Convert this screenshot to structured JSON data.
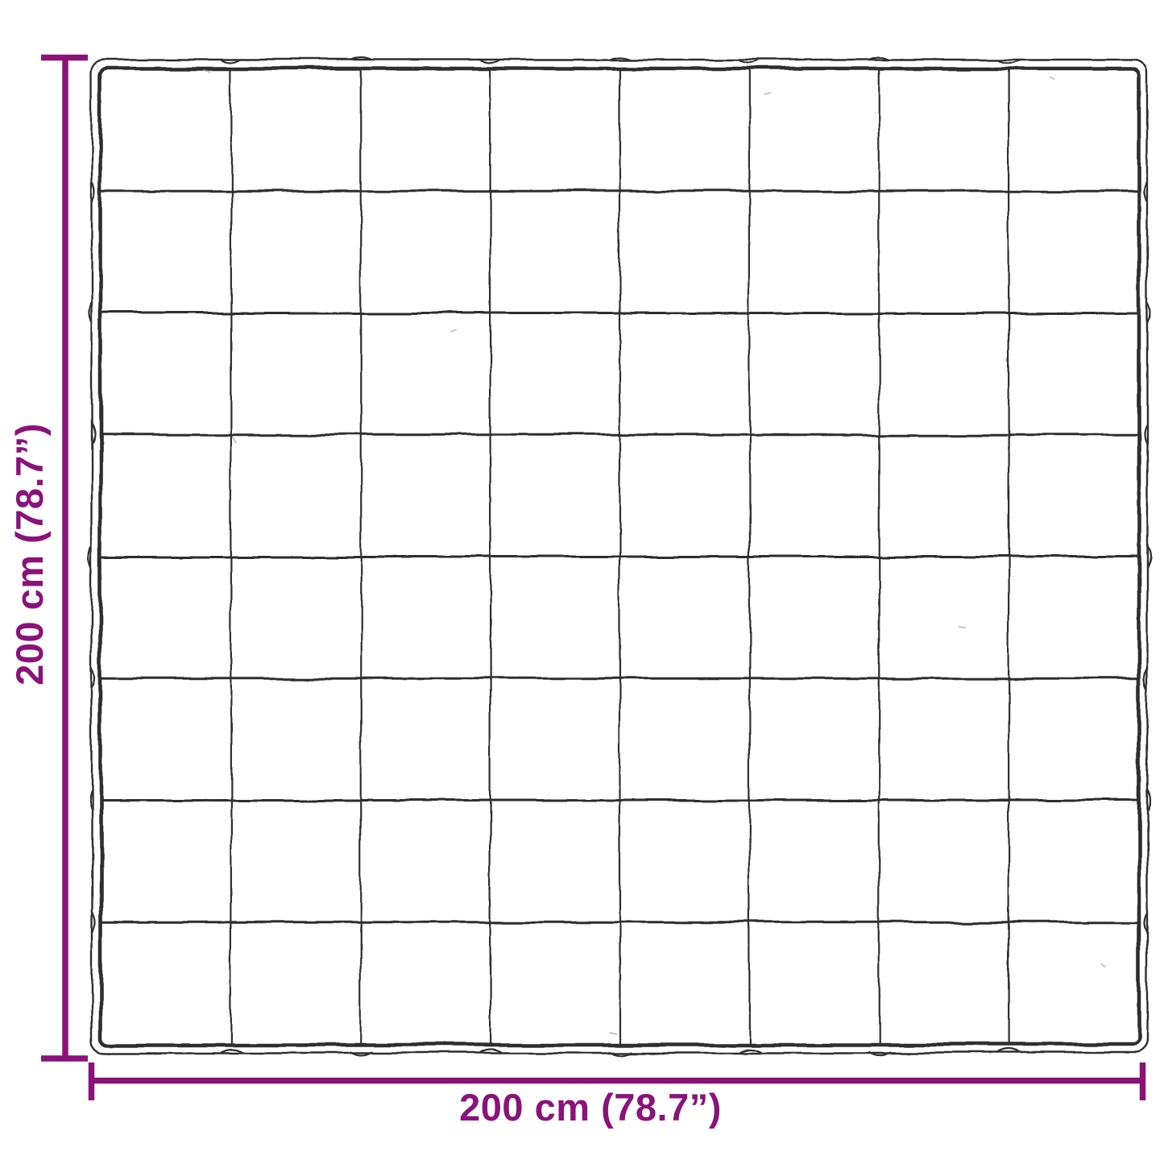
{
  "diagram": {
    "title": "Blanket dimension diagram",
    "product": "quilted-blanket",
    "quilt_grid": {
      "rows": 8,
      "cols": 8
    },
    "width_label": "200 cm (78.7”)",
    "height_label": "200 cm (78.7”)",
    "colors": {
      "dimension_accent": "#8a137a",
      "blanket_outline": "#2e2e2e",
      "background": "#ffffff"
    }
  }
}
